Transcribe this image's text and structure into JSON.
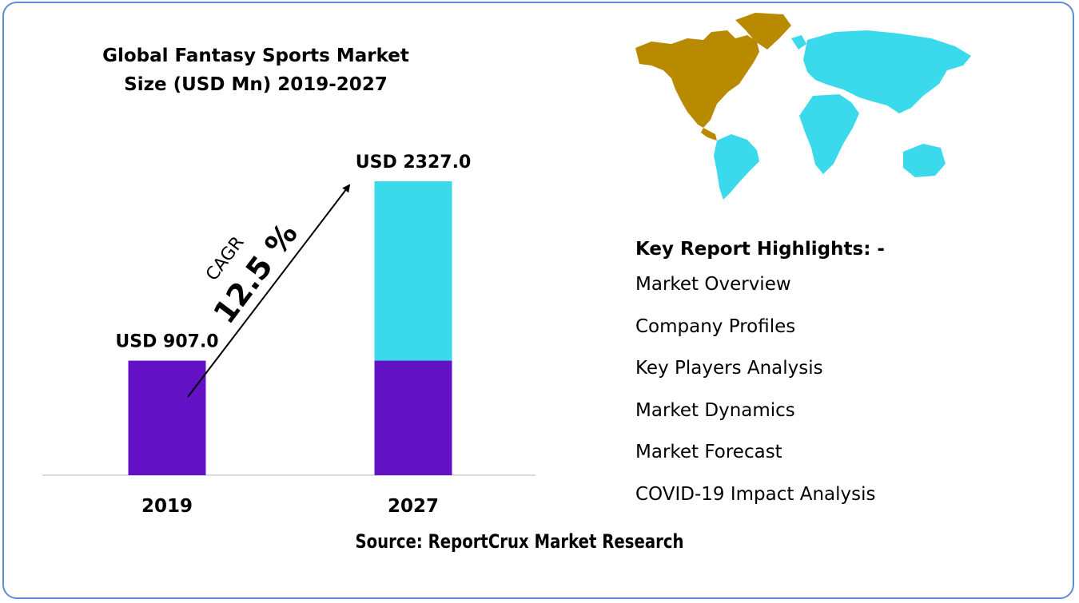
{
  "chart_data": {
    "type": "bar",
    "title_lines": [
      "Global Fantasy Sports Market",
      "Size (USD Mn) 2019-2027"
    ],
    "categories": [
      "2019",
      "2027"
    ],
    "values": [
      907.0,
      2327.0
    ],
    "value_labels": [
      "USD 907.0",
      "USD 2327.0"
    ],
    "base_value": 907.0,
    "ylim": [
      0,
      2327.0
    ],
    "cagr_label": "CAGR",
    "cagr_value": "12.5 %",
    "colors": {
      "base": "#6212c4",
      "growth": "#3adaec"
    }
  },
  "highlights": {
    "title": "Key Report Highlights: -",
    "items": [
      "Market Overview",
      "Company Profiles",
      "Key Players Analysis",
      "Market Dynamics",
      "Market Forecast",
      "COVID-19 Impact Analysis"
    ]
  },
  "source": "Source: ReportCrux Market Research",
  "map": {
    "icon": "world-map-icon",
    "colors": {
      "north-america": "#b78a00",
      "rest-of-world": "#3adaec"
    }
  }
}
